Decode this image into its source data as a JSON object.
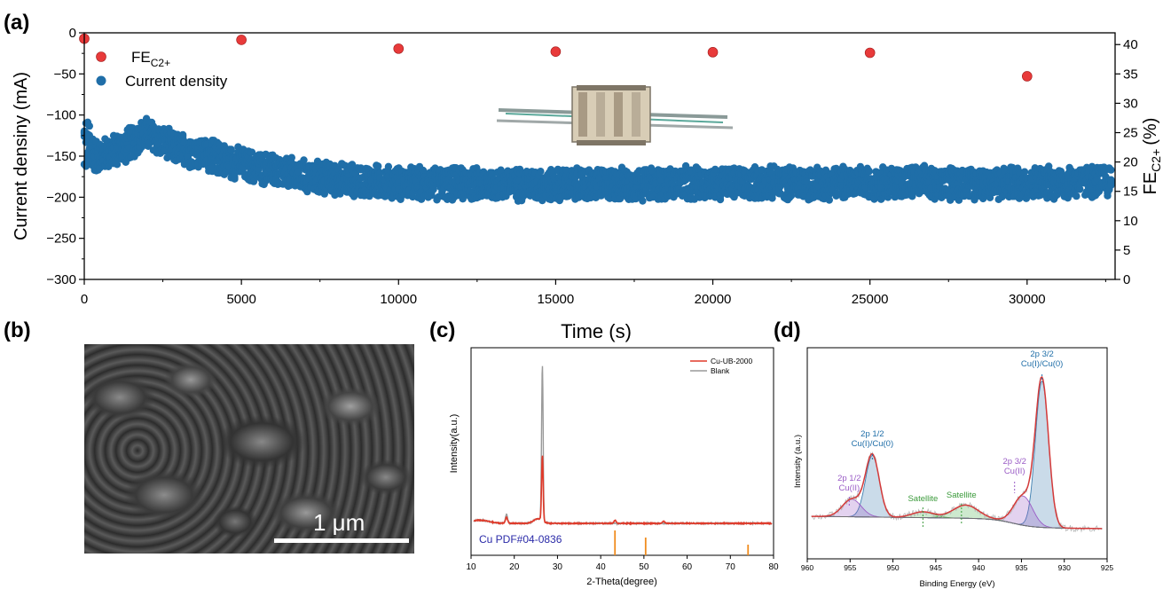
{
  "panels": {
    "a": "(a)",
    "b": "(b)",
    "c": "(c)",
    "d": "(d)"
  },
  "colors": {
    "fe": "#e83a3a",
    "current": "#1f6ea8",
    "cu_ub": "#e03a2a",
    "blank": "#9a9a9a",
    "ref": "#f08c1e",
    "fit_total": "#d43a3a",
    "cu0": "#3f7fb0",
    "cu2": "#9a5cc6",
    "sat": "#4caf50"
  },
  "chart_data": [
    {
      "panel": "a",
      "type": "scatter",
      "xlabel": "Time (s)",
      "ylabel_left": "Current densiny (mA)",
      "ylabel_right": "FE",
      "ylabel_right_sub": "C2+",
      "ylabel_right_unit": "(%)",
      "xlim": [
        0,
        32800
      ],
      "ylim_left": [
        -300,
        0
      ],
      "ylim_right": [
        0,
        42
      ],
      "x_ticks": [
        0,
        5000,
        10000,
        15000,
        20000,
        25000,
        30000
      ],
      "y_ticks_left": [
        0,
        -50,
        -100,
        -150,
        -200,
        -250,
        -300
      ],
      "y_ticks_right": [
        0,
        5,
        10,
        15,
        20,
        25,
        30,
        35,
        40
      ],
      "legend": [
        {
          "label": "FE",
          "sub": "C2+"
        },
        {
          "label": "Current density"
        }
      ],
      "fe_series": {
        "x": [
          0,
          5000,
          10000,
          15000,
          20000,
          25000,
          30000
        ],
        "y": [
          41.0,
          40.8,
          39.3,
          38.8,
          38.7,
          38.6,
          34.6
        ]
      },
      "current_band": {
        "x": [
          0,
          300,
          600,
          1200,
          2000,
          2800,
          3500,
          5000,
          7000,
          10000,
          15000,
          20000,
          25000,
          30000,
          32700
        ],
        "mean": [
          -135,
          -150,
          -148,
          -140,
          -122,
          -140,
          -145,
          -160,
          -175,
          -183,
          -185,
          -183,
          -182,
          -183,
          -180
        ]
      }
    },
    {
      "panel": "b",
      "type": "image",
      "scale_label": "1 μm"
    },
    {
      "panel": "c",
      "type": "line",
      "xlabel": "2-Theta(degree)",
      "ylabel": "Intensity(a.u.)",
      "xlim": [
        10,
        80
      ],
      "x_ticks": [
        10,
        20,
        30,
        40,
        50,
        60,
        70,
        80
      ],
      "legend": [
        "Cu-UB-2000",
        "Blank"
      ],
      "ref_label": "Cu PDF#04-0836",
      "ref_lines": [
        43.3,
        50.4,
        74.1
      ],
      "peaks_cu_ub": [
        {
          "x": 18.2,
          "h": 0.04
        },
        {
          "x": 26.5,
          "h": 0.42
        },
        {
          "x": 43.3,
          "h": 0.02
        },
        {
          "x": 54.5,
          "h": 0.015
        }
      ],
      "peaks_blank": [
        {
          "x": 18.2,
          "h": 0.06
        },
        {
          "x": 26.5,
          "h": 1.0
        }
      ],
      "baseline": 0.02
    },
    {
      "panel": "d",
      "type": "line",
      "xlabel": "Binding Energy (eV)",
      "ylabel": "Intensity (a.u.)",
      "xlim": [
        960,
        925
      ],
      "x_ticks": [
        960,
        955,
        950,
        945,
        940,
        935,
        930,
        925
      ],
      "components": [
        {
          "name": "Cu(I)/Cu(0) 2p3/2",
          "center": 932.6,
          "fwhm": 1.8,
          "height": 1.0,
          "color": "#3f7fb0"
        },
        {
          "name": "Cu(II) 2p3/2",
          "center": 934.8,
          "fwhm": 2.6,
          "height": 0.2,
          "color": "#9a5cc6"
        },
        {
          "name": "Satellite 1",
          "center": 941.5,
          "fwhm": 3.5,
          "height": 0.09,
          "color": "#4caf50"
        },
        {
          "name": "Satellite 2",
          "center": 946.5,
          "fwhm": 3.0,
          "height": 0.04,
          "color": "#4caf50"
        },
        {
          "name": "Cu(I)/Cu(0) 2p1/2",
          "center": 952.4,
          "fwhm": 1.9,
          "height": 0.42,
          "color": "#3f7fb0"
        },
        {
          "name": "Cu(II) 2p1/2",
          "center": 954.8,
          "fwhm": 2.6,
          "height": 0.12,
          "color": "#9a5cc6"
        }
      ],
      "annotations": [
        {
          "lines": [
            "2p 3/2",
            "Cu(I)/Cu(0)"
          ],
          "x": 932.6,
          "color": "#1f6ea8"
        },
        {
          "lines": [
            "2p 1/2",
            "Cu(I)/Cu(0)"
          ],
          "x": 952.4,
          "color": "#1f6ea8"
        },
        {
          "lines": [
            "2p 3/2",
            "Cu(II)"
          ],
          "x": 935.8,
          "color": "#9a5cc6"
        },
        {
          "lines": [
            "2p 1/2",
            "Cu(II)"
          ],
          "x": 955.1,
          "color": "#9a5cc6"
        },
        {
          "lines": [
            "Satellite"
          ],
          "x": 942.0,
          "color": "#3a9a3a"
        },
        {
          "lines": [
            "Satellite"
          ],
          "x": 946.5,
          "color": "#3a9a3a"
        }
      ]
    }
  ]
}
